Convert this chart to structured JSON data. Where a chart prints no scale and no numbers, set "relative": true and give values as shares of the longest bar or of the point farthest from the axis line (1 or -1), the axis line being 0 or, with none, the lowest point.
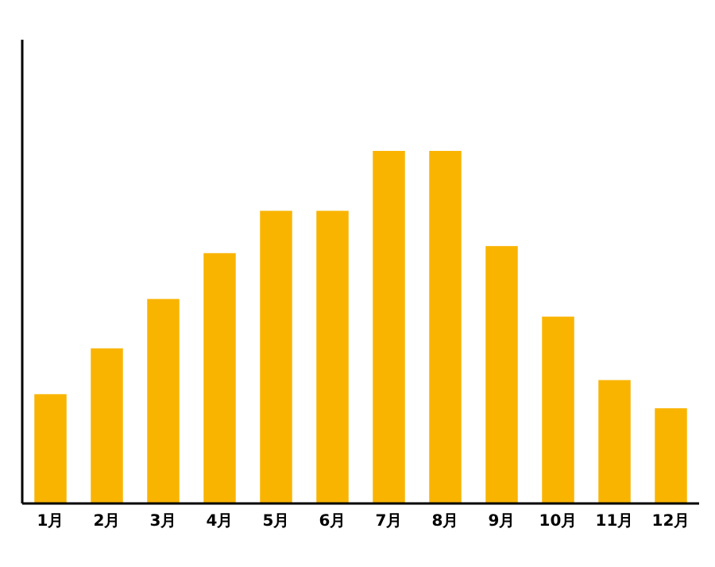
{
  "chart_data": {
    "type": "bar",
    "relative": true,
    "categories": [
      "1月",
      "2月",
      "3月",
      "4月",
      "5月",
      "6月",
      "7月",
      "8月",
      "9月",
      "10月",
      "11月",
      "12月"
    ],
    "values": [
      0.31,
      0.44,
      0.58,
      0.71,
      0.83,
      0.83,
      1,
      1,
      0.73,
      0.53,
      0.35,
      0.27
    ],
    "color": "#f9b400"
  }
}
